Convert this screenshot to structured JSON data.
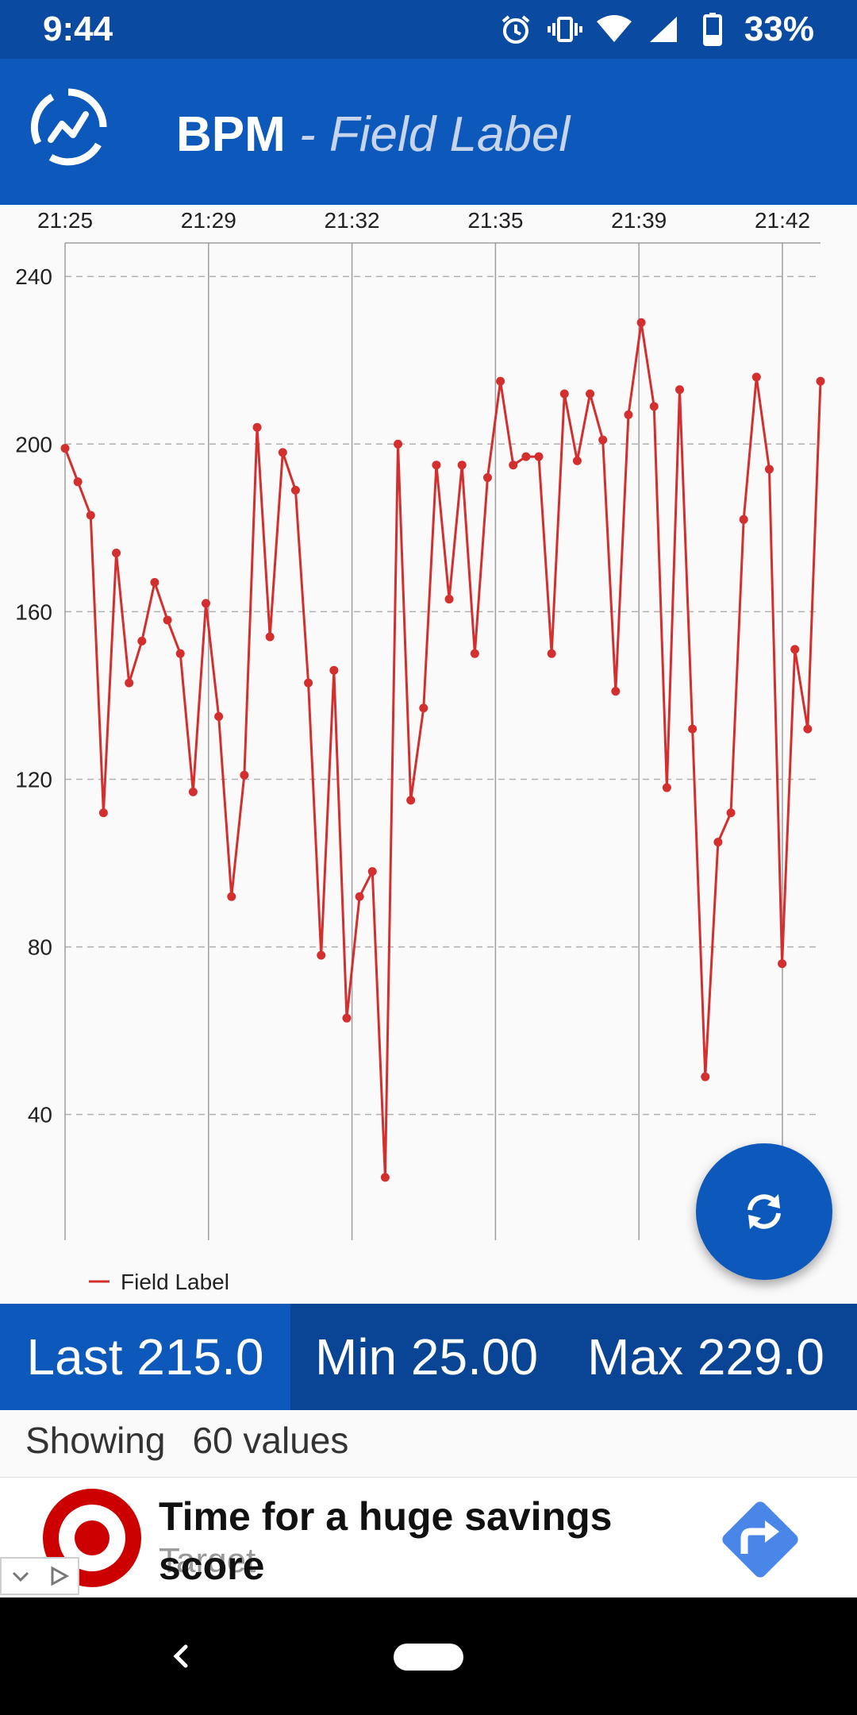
{
  "status_bar": {
    "time": "9:44",
    "battery_percent": "33%",
    "icons": [
      "alarm-icon",
      "vibrate-icon",
      "wifi-icon",
      "cell-signal-icon",
      "battery-icon"
    ]
  },
  "app_bar": {
    "title": "BPM",
    "subtitle": "- Field Label",
    "logo_icon": "app-logo-chart-icon",
    "background_color": "#0d59bb"
  },
  "chart_data": {
    "type": "line",
    "x_tick_labels": [
      "21:25",
      "21:29",
      "21:32",
      "21:35",
      "21:39",
      "21:42"
    ],
    "y_tick_labels": [
      "40",
      "80",
      "120",
      "160",
      "200",
      "240"
    ],
    "y_ticks": [
      40,
      80,
      120,
      160,
      200,
      240
    ],
    "ylim": [
      10,
      248
    ],
    "grid": "horizontal dashed, vertical solid",
    "legend_placement": "bottom-left",
    "line_color": "#d32f2f",
    "series": [
      {
        "name": "Field Label",
        "values": [
          199,
          191,
          183,
          112,
          174,
          143,
          153,
          167,
          158,
          150,
          117,
          162,
          135,
          92,
          121,
          204,
          154,
          198,
          189,
          143,
          78,
          146,
          63,
          92,
          98,
          25,
          200,
          115,
          137,
          195,
          163,
          195,
          150,
          192,
          215,
          195,
          197,
          197,
          150,
          212,
          196,
          212,
          201,
          141,
          207,
          229,
          209,
          118,
          213,
          132,
          49,
          105,
          112,
          182,
          216,
          194,
          76,
          151,
          132,
          215
        ]
      }
    ]
  },
  "refresh_button": {
    "icon": "refresh-icon"
  },
  "stats": {
    "last": "Last 215.0",
    "min": "Min 25.00",
    "max": "Max 229.0"
  },
  "showing": {
    "label": "Showing",
    "count_text": "60 values"
  },
  "ad": {
    "headline": "Time for a huge savings score",
    "advertiser": "Target",
    "logo_icon": "target-logo-icon",
    "action_icon": "directions-arrow-icon"
  },
  "nav_bar": {
    "icons": [
      "back-icon",
      "home-pill-icon"
    ]
  }
}
